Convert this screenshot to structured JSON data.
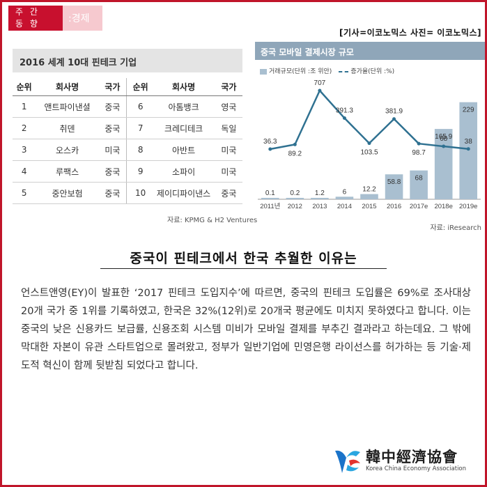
{
  "header": {
    "badge_line1": "주 간",
    "badge_line2": "동 향",
    "badge_category": ":경제",
    "credit": "[기사=이코노믹스 사진= 이코노믹스]"
  },
  "table": {
    "title": "2016 세계 10대 핀테크 기업",
    "headers": {
      "rank": "순위",
      "company": "회사명",
      "country": "국가"
    },
    "left": [
      {
        "rank": "1",
        "company": "앤트파이낸셜",
        "country": "중국"
      },
      {
        "rank": "2",
        "company": "취덴",
        "country": "중국"
      },
      {
        "rank": "3",
        "company": "오스카",
        "country": "미국"
      },
      {
        "rank": "4",
        "company": "루팩스",
        "country": "중국"
      },
      {
        "rank": "5",
        "company": "중안보험",
        "country": "중국"
      }
    ],
    "right": [
      {
        "rank": "6",
        "company": "아톰뱅크",
        "country": "영국"
      },
      {
        "rank": "7",
        "company": "크레디테크",
        "country": "독일"
      },
      {
        "rank": "8",
        "company": "아반트",
        "country": "미국"
      },
      {
        "rank": "9",
        "company": "소파이",
        "country": "미국"
      },
      {
        "rank": "10",
        "company": "제이디파이낸스",
        "country": "중국"
      }
    ],
    "source": "자료: KPMG & H2 Ventures"
  },
  "chart_data": {
    "type": "bar",
    "title": "중국 모바일 결제시장 규모",
    "categories": [
      "2011년",
      "2012",
      "2013",
      "2014",
      "2015",
      "2016",
      "2017e",
      "2018e",
      "2019e"
    ],
    "series": [
      {
        "name": "거래규모(단위 :조 위안)",
        "type": "bar",
        "values": [
          0.1,
          0.2,
          1.2,
          6,
          12.2,
          58.8,
          68,
          165.9,
          229
        ],
        "labels": [
          "0.1",
          "0.2",
          "1.2",
          "6",
          "12.2",
          "58.8",
          "68",
          "165.9",
          "229"
        ]
      },
      {
        "name": "증가율(단위 :%)",
        "type": "line",
        "values": [
          36.3,
          89.2,
          707,
          391.3,
          103.5,
          381.9,
          98.7,
          68,
          38
        ],
        "labels": [
          "36.3",
          "89.2",
          "707",
          "391.3",
          "103.5",
          "381.9",
          "98.7",
          "68",
          "38"
        ]
      }
    ],
    "source": "자료: iResearch",
    "colors": {
      "bar": "#a9bfd0",
      "line": "#2f7191"
    }
  },
  "article": {
    "headline": "중국이 핀테크에서 한국 추월한 이유는",
    "body": "언스트앤영(EY)이 발표한 ‘2017 핀테크 도입지수’에 따르면, 중국의 핀테크 도입률은 69%로 조사대상 20개 국가 중 1위를 기록하였고, 한국은 32%(12위)로 20개국 평균에도 미치지 못하였다고 합니다. 이는 중국의 낮은 신용카드 보급률, 신용조회 시스템 미비가 모바일 결제를 부추긴 결과라고 하는데요. 그 밖에 막대한 자본이 유관 스타트업으로 몰려왔고, 정부가 일반기업에 민영은행 라이선스를 허가하는 등 기술·제도적 혁신이 함께 뒷받침 되었다고 합니다."
  },
  "logo": {
    "name_cn": "韓中經濟協會",
    "name_en": "Korea China Economy Association"
  }
}
